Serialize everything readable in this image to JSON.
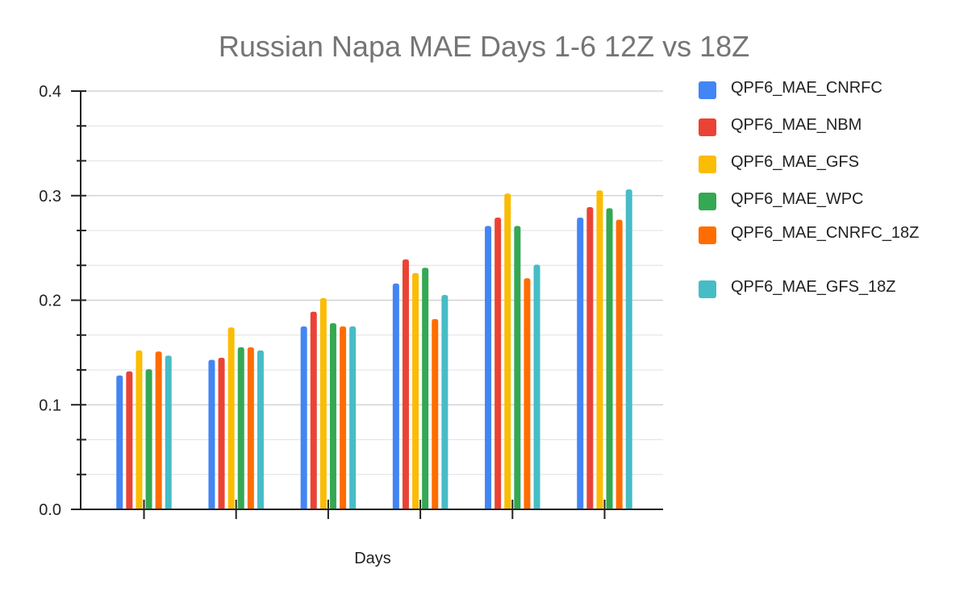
{
  "chart_data": {
    "type": "bar",
    "title": "Russian Napa MAE Days 1-6 12Z vs 18Z",
    "xlabel": "Days",
    "ylabel": "",
    "categories": [
      "",
      "",
      "",
      "",
      "",
      ""
    ],
    "ylim": [
      0,
      0.4
    ],
    "yticks": [
      0.0,
      0.1,
      0.2,
      0.3,
      0.4
    ],
    "ytick_labels": [
      "0.0",
      "0.1",
      "0.2",
      "0.3",
      "0.4"
    ],
    "grid": true,
    "legend_position": "right",
    "series": [
      {
        "name": "QPF6_MAE_CNRFC",
        "color": "#4285f4",
        "values": [
          0.128,
          0.143,
          0.175,
          0.216,
          0.271,
          0.279
        ]
      },
      {
        "name": "QPF6_MAE_NBM",
        "color": "#ea4335",
        "values": [
          0.132,
          0.145,
          0.189,
          0.239,
          0.279,
          0.289
        ]
      },
      {
        "name": "QPF6_MAE_GFS",
        "color": "#fbbc04",
        "values": [
          0.152,
          0.174,
          0.202,
          0.226,
          0.302,
          0.305
        ]
      },
      {
        "name": "QPF6_MAE_WPC",
        "color": "#34a853",
        "values": [
          0.134,
          0.155,
          0.178,
          0.231,
          0.271,
          0.288
        ]
      },
      {
        "name": "QPF6_MAE_CNRFC_18Z",
        "color": "#ff6d01",
        "values": [
          0.151,
          0.155,
          0.175,
          0.182,
          0.221,
          0.277
        ]
      },
      {
        "name": "QPF6_MAE_GFS_18Z",
        "color": "#46bdc6",
        "values": [
          0.147,
          0.152,
          0.175,
          0.205,
          0.234,
          0.306
        ]
      }
    ]
  }
}
